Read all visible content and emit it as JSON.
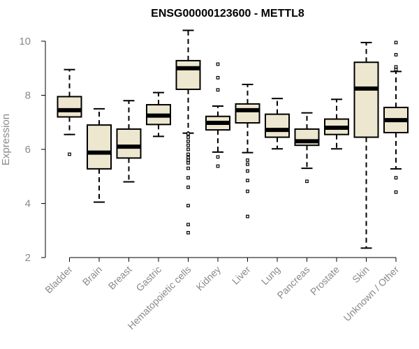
{
  "chart_data": {
    "type": "boxplot",
    "title": "ENSG00000123600 - METTL8",
    "xlabel": "",
    "ylabel": "Expression",
    "ylim": [
      2,
      10.5
    ],
    "yticks": [
      2,
      4,
      6,
      8,
      10
    ],
    "grid": false,
    "box_fill": "#ede7cf",
    "categories": [
      "Bladder",
      "Brain",
      "Breast",
      "Gastric",
      "Hematopoietic cells",
      "Kidney",
      "Liver",
      "Lung",
      "Pancreas",
      "Prostate",
      "Skin",
      "Unknown / Other"
    ],
    "boxes": [
      {
        "whisker_low": 6.55,
        "q1": 7.2,
        "median": 7.45,
        "q3": 7.95,
        "whisker_high": 8.95,
        "outliers": [
          5.82
        ]
      },
      {
        "whisker_low": 4.05,
        "q1": 5.28,
        "median": 5.88,
        "q3": 6.9,
        "whisker_high": 7.5,
        "outliers": []
      },
      {
        "whisker_low": 4.8,
        "q1": 5.68,
        "median": 6.1,
        "q3": 6.75,
        "whisker_high": 7.8,
        "outliers": []
      },
      {
        "whisker_low": 6.48,
        "q1": 6.92,
        "median": 7.25,
        "q3": 7.65,
        "whisker_high": 8.1,
        "outliers": []
      },
      {
        "whisker_low": 6.6,
        "q1": 8.22,
        "median": 9.0,
        "q3": 9.28,
        "whisker_high": 10.4,
        "outliers": [
          6.58,
          6.45,
          6.3,
          6.15,
          6.0,
          5.82,
          5.7,
          5.6,
          5.5,
          5.3,
          4.95,
          4.6,
          3.92,
          3.22,
          2.92
        ]
      },
      {
        "whisker_low": 5.9,
        "q1": 6.72,
        "median": 6.98,
        "q3": 7.22,
        "whisker_high": 7.6,
        "outliers": [
          9.15,
          8.65,
          8.2,
          5.72,
          5.38
        ]
      },
      {
        "whisker_low": 5.88,
        "q1": 6.98,
        "median": 7.45,
        "q3": 7.68,
        "whisker_high": 8.4,
        "outliers": [
          5.6,
          5.45,
          5.2,
          4.85,
          4.45,
          3.52
        ]
      },
      {
        "whisker_low": 6.02,
        "q1": 6.45,
        "median": 6.72,
        "q3": 7.3,
        "whisker_high": 7.88,
        "outliers": []
      },
      {
        "whisker_low": 5.3,
        "q1": 6.15,
        "median": 6.3,
        "q3": 6.75,
        "whisker_high": 7.35,
        "outliers": [
          4.82
        ]
      },
      {
        "whisker_low": 6.02,
        "q1": 6.55,
        "median": 6.8,
        "q3": 7.12,
        "whisker_high": 7.85,
        "outliers": []
      },
      {
        "whisker_low": 2.35,
        "q1": 6.45,
        "median": 8.25,
        "q3": 9.22,
        "whisker_high": 9.95,
        "outliers": []
      },
      {
        "whisker_low": 5.28,
        "q1": 6.62,
        "median": 7.08,
        "q3": 7.55,
        "whisker_high": 8.88,
        "outliers": [
          9.95,
          9.5,
          9.05,
          8.95,
          4.95,
          4.42
        ]
      }
    ]
  }
}
